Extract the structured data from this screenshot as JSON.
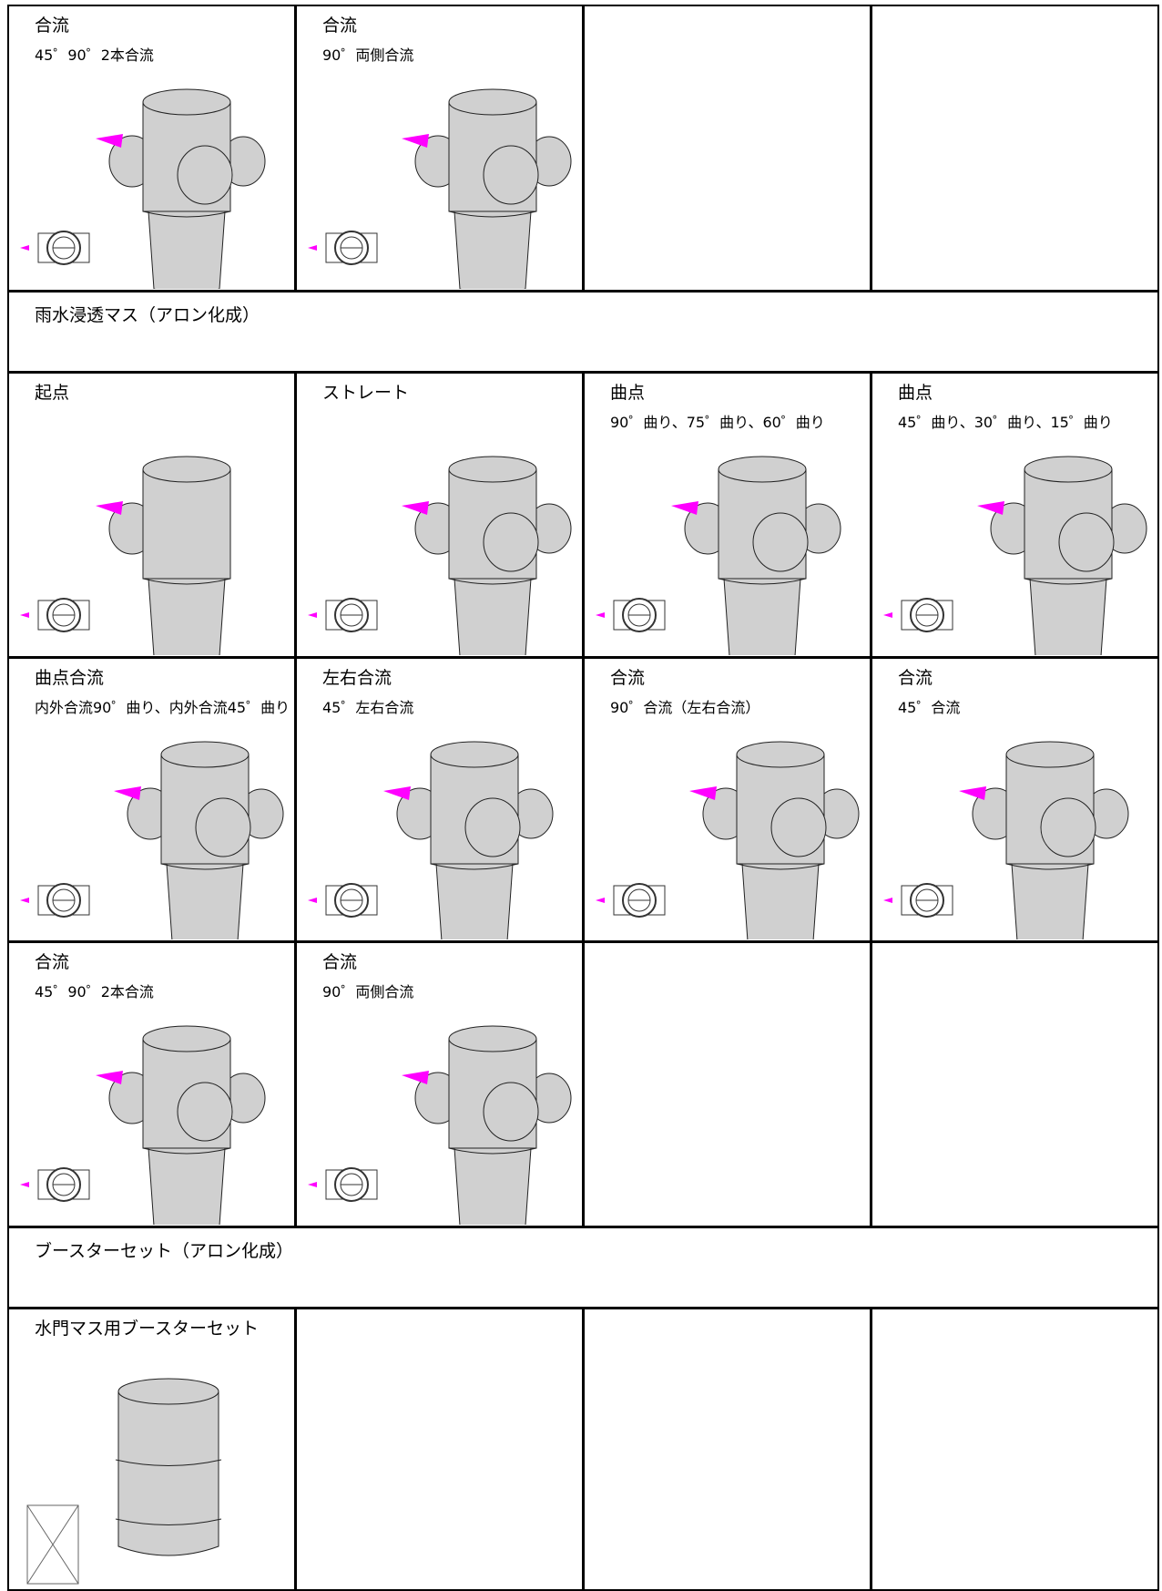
{
  "rows": [
    {
      "cells": [
        {
          "title": "合流",
          "subtitle": "45゜90゜2本合流"
        },
        {
          "title": "合流",
          "subtitle": "90゜両側合流"
        },
        null,
        null
      ]
    },
    {
      "heading": "雨水浸透マス（アロン化成）"
    },
    {
      "cells": [
        {
          "title": "起点"
        },
        {
          "title": "ストレート"
        },
        {
          "title": "曲点",
          "subtitle": "90゜曲り、75゜曲り、60゜曲り"
        },
        {
          "title": "曲点",
          "subtitle": "45゜曲り、30゜曲り、15゜曲り"
        }
      ]
    },
    {
      "cells": [
        {
          "title": "曲点合流",
          "subtitle": "内外合流90゜曲り、内外合流45゜曲り"
        },
        {
          "title": "左右合流",
          "subtitle": "45゜左右合流"
        },
        {
          "title": "合流",
          "subtitle": "90゜合流（左右合流）"
        },
        {
          "title": "合流",
          "subtitle": "45゜合流"
        }
      ]
    },
    {
      "cells": [
        {
          "title": "合流",
          "subtitle": "45゜90゜2本合流"
        },
        {
          "title": "合流",
          "subtitle": "90゜両側合流"
        },
        null,
        null
      ]
    },
    {
      "heading": "ブースターセット（アロン化成）"
    },
    {
      "cells": [
        {
          "title": "水門マス用ブースターセット"
        },
        null,
        null,
        null
      ]
    }
  ]
}
